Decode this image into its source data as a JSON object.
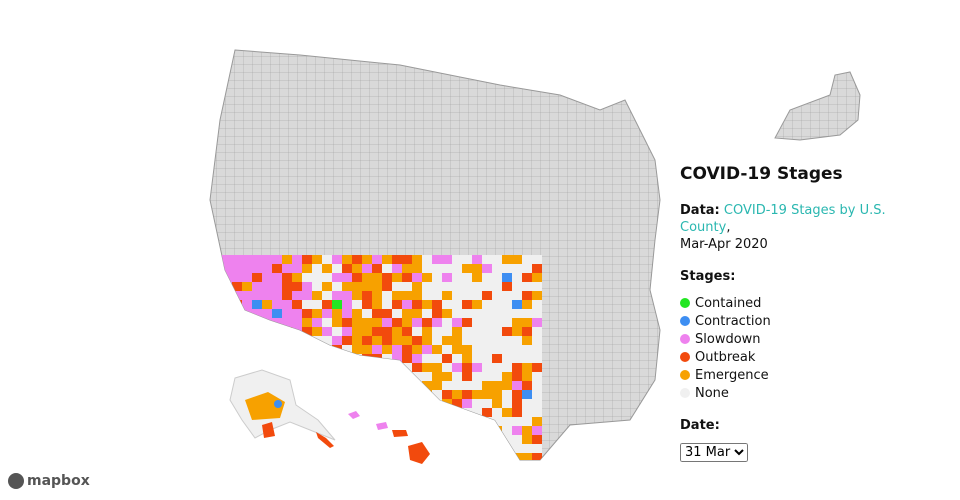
{
  "panel": {
    "title": "COVID-19 Stages",
    "data_label": "Data:",
    "data_link": "COVID-19 Stages by U.S. County",
    "data_separator": ",",
    "data_range": "Mar-Apr 2020",
    "stages_label": "Stages:",
    "stages": [
      {
        "name": "Contained",
        "color": "#22e622"
      },
      {
        "name": "Contraction",
        "color": "#3d8ef2"
      },
      {
        "name": "Slowdown",
        "color": "#ee82ee"
      },
      {
        "name": "Outbreak",
        "color": "#f24a0d"
      },
      {
        "name": "Emergence",
        "color": "#f7a100"
      },
      {
        "name": "None",
        "color": "#f0f0f0"
      }
    ],
    "date_label": "Date:",
    "date_options": [
      "31 Mar"
    ]
  },
  "attribution": "mapbox"
}
